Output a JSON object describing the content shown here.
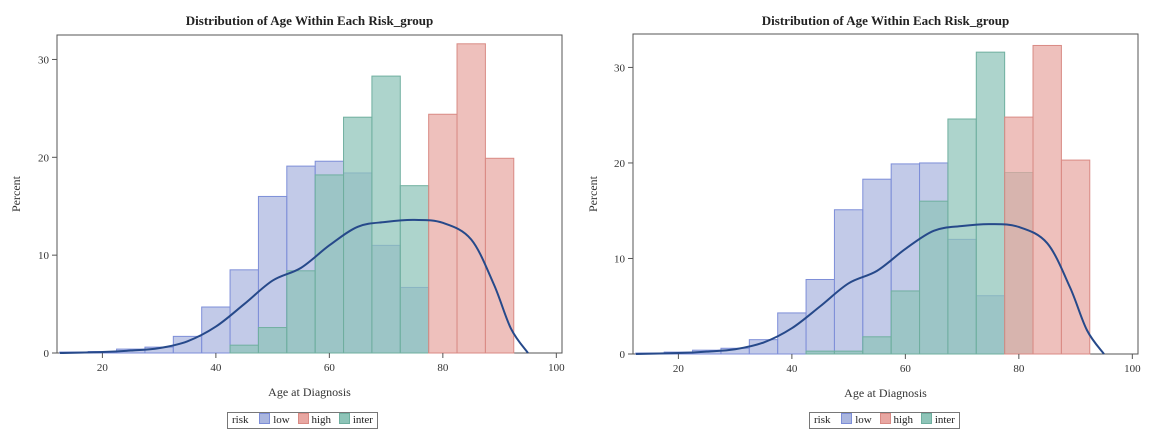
{
  "colors": {
    "low_fill": "#aab6df",
    "low_stroke": "#7d8ed8",
    "high_fill": "#e8a7a2",
    "high_stroke": "#d98a84",
    "inter_fill": "#8ec4b8",
    "inter_stroke": "#6faf9f",
    "density": "#26498a"
  },
  "chart_data": [
    {
      "type": "histogram",
      "title": "Distribution of Age Within Each Risk_group",
      "xlabel": "Age at Diagnosis",
      "ylabel": "Percent",
      "xlim": [
        12,
        101
      ],
      "ylim": [
        0,
        32.5
      ],
      "xticks": [
        "20",
        "40",
        "60",
        "80",
        "100"
      ],
      "yticks": [
        "0",
        "10",
        "20",
        "30"
      ],
      "bin_width": 5,
      "bin_edges": [
        12.5,
        17.5,
        22.5,
        27.5,
        32.5,
        37.5,
        42.5,
        47.5,
        52.5,
        57.5,
        62.5,
        67.5,
        72.5,
        77.5,
        82.5,
        87.5,
        92.5
      ],
      "legend": {
        "title": "risk",
        "entries": [
          "low",
          "high",
          "inter"
        ]
      },
      "series": [
        {
          "name": "low",
          "values": [
            0.1,
            0.15,
            0.4,
            0.6,
            1.7,
            4.7,
            8.5,
            16.0,
            19.1,
            19.6,
            18.4,
            11.0,
            6.7,
            0,
            0,
            0
          ]
        },
        {
          "name": "high",
          "values": [
            0,
            0,
            0,
            0,
            0,
            0,
            0,
            0,
            0,
            0,
            0,
            0,
            0,
            24.4,
            31.6,
            19.9
          ]
        },
        {
          "name": "inter",
          "values": [
            0,
            0,
            0,
            0,
            0,
            0,
            0.8,
            2.6,
            8.4,
            18.2,
            24.1,
            28.3,
            17.1,
            0,
            0,
            0
          ]
        }
      ],
      "density": {
        "x": [
          12.5,
          20,
          25,
          30,
          35,
          40,
          45,
          50,
          55,
          60,
          65,
          70,
          75,
          80,
          85,
          89,
          92,
          95
        ],
        "y": [
          0,
          0.1,
          0.25,
          0.5,
          1.2,
          2.7,
          5.0,
          7.4,
          8.7,
          11.0,
          12.9,
          13.4,
          13.6,
          13.3,
          11.6,
          7.0,
          2.5,
          0
        ]
      }
    },
    {
      "type": "histogram",
      "title": "Distribution of Age Within Each Risk_group",
      "xlabel": "Age at Diagnosis",
      "ylabel": "Percent",
      "xlim": [
        12,
        101
      ],
      "ylim": [
        0,
        33.5
      ],
      "xticks": [
        "20",
        "40",
        "60",
        "80",
        "100"
      ],
      "yticks": [
        "0",
        "10",
        "20",
        "30"
      ],
      "bin_width": 5,
      "bin_edges": [
        12.5,
        17.5,
        22.5,
        27.5,
        32.5,
        37.5,
        42.5,
        47.5,
        52.5,
        57.5,
        62.5,
        67.5,
        72.5,
        77.5,
        82.5,
        87.5,
        92.5
      ],
      "legend": {
        "title": "risk",
        "entries": [
          "low",
          "high",
          "inter"
        ]
      },
      "series": [
        {
          "name": "low",
          "values": [
            0.1,
            0.2,
            0.4,
            0.6,
            1.5,
            4.3,
            7.8,
            15.1,
            18.3,
            19.9,
            20.0,
            12.0,
            6.1,
            0,
            0,
            0
          ]
        },
        {
          "name": "high",
          "values": [
            0,
            0,
            0,
            0,
            0,
            0,
            0,
            0,
            0,
            0,
            0,
            0,
            0,
            24.8,
            32.3,
            20.3
          ]
        },
        {
          "name": "inter",
          "values": [
            0,
            0,
            0,
            0,
            0,
            0,
            0.3,
            0.3,
            1.8,
            6.6,
            16.0,
            24.6,
            31.6,
            19.0,
            0,
            0
          ]
        }
      ],
      "density": {
        "x": [
          12.5,
          20,
          25,
          30,
          35,
          40,
          45,
          50,
          55,
          60,
          65,
          70,
          75,
          80,
          85,
          89,
          92,
          95
        ],
        "y": [
          0,
          0.1,
          0.25,
          0.5,
          1.2,
          2.7,
          5.0,
          7.4,
          8.7,
          11.0,
          12.9,
          13.4,
          13.6,
          13.3,
          11.6,
          7.0,
          2.5,
          0
        ]
      }
    }
  ]
}
